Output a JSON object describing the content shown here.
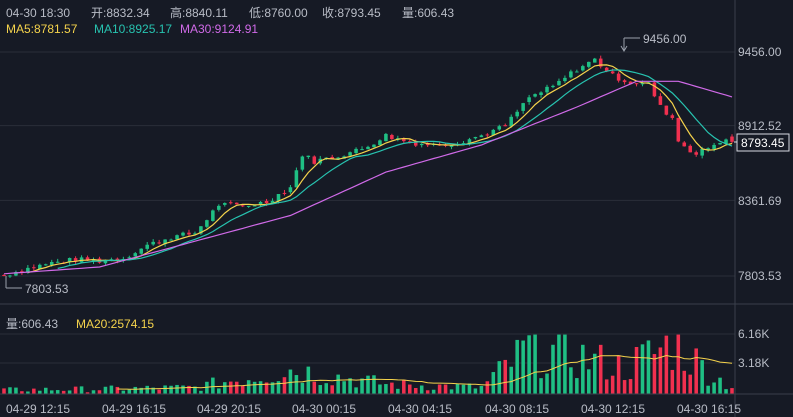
{
  "info": {
    "time": "04-30 18:30",
    "open": "开:8832.34",
    "high": "高:8840.11",
    "low": "低:8760.00",
    "close": "收:8793.45",
    "volume": "量:606.43"
  },
  "ma_legend": {
    "ma5": "MA5:8781.57",
    "ma10": "MA10:8925.17",
    "ma30": "MA30:9124.91"
  },
  "vol_legend": {
    "vol": "量:606.43",
    "ma20": "MA20:2574.15"
  },
  "price_axis": {
    "ticks": [
      "9456.00",
      "8912.52",
      "8361.69",
      "7803.53"
    ],
    "current": "8793.45"
  },
  "vol_axis": {
    "ticks": [
      "6.16K",
      "3.18K"
    ]
  },
  "time_axis": [
    "04-29 12:15",
    "04-29 16:15",
    "04-29 20:15",
    "04-30 00:15",
    "04-30 04:15",
    "04-30 08:15",
    "04-30 12:15",
    "04-30 16:15"
  ],
  "annotations": {
    "max": "9456.00",
    "min": "7803.53"
  },
  "colors": {
    "up": "#1fbf84",
    "down": "#f0304f",
    "ma5": "#f5d34c",
    "ma10": "#27c3b0",
    "ma30": "#d06ae8",
    "bg": "#161a25",
    "grid": "#2a2e39",
    "text": "#b8bcc6"
  },
  "chart_data": {
    "type": "candlestick",
    "interval": "15m",
    "time_range": [
      "04-29 12:00",
      "04-30 18:30"
    ],
    "price_ylim": [
      7803.53,
      9456.0
    ],
    "price_ticks": [
      9456.0,
      8912.52,
      8361.69,
      7803.53
    ],
    "volume_ticks_k": [
      6.16,
      3.18
    ],
    "last": {
      "open": 8832.34,
      "high": 8840.11,
      "low": 8760.0,
      "close": 8793.45,
      "volume": 606.43
    },
    "ma": {
      "MA5": 8781.57,
      "MA10": 8925.17,
      "MA30": 9124.91
    },
    "volume_ma": {
      "MA20": 2574.15
    },
    "max_label": 9456.0,
    "min_label": 7803.53,
    "x_tick_labels": [
      "04-29 12:15",
      "04-29 16:15",
      "04-29 20:15",
      "04-30 00:15",
      "04-30 04:15",
      "04-30 08:15",
      "04-30 12:15",
      "04-30 16:15"
    ],
    "close_path": [
      [
        "04-29 12:00",
        7810
      ],
      [
        "04-29 13:00",
        7860
      ],
      [
        "04-29 14:00",
        7900
      ],
      [
        "04-29 15:00",
        7925
      ],
      [
        "04-29 16:00",
        7915
      ],
      [
        "04-29 17:00",
        7935
      ],
      [
        "04-29 18:00",
        8030
      ],
      [
        "04-29 19:00",
        8090
      ],
      [
        "04-29 20:00",
        8120
      ],
      [
        "04-29 21:00",
        8330
      ],
      [
        "04-29 22:00",
        8320
      ],
      [
        "04-29 23:00",
        8350
      ],
      [
        "04-30 00:00",
        8460
      ],
      [
        "04-30 00:30",
        8700
      ],
      [
        "04-30 01:00",
        8650
      ],
      [
        "04-30 02:00",
        8690
      ],
      [
        "04-30 03:00",
        8740
      ],
      [
        "04-30 04:00",
        8840
      ],
      [
        "04-30 05:00",
        8790
      ],
      [
        "04-30 06:00",
        8770
      ],
      [
        "04-30 07:00",
        8790
      ],
      [
        "04-30 08:00",
        8840
      ],
      [
        "04-30 09:00",
        8910
      ],
      [
        "04-30 10:00",
        9120
      ],
      [
        "04-30 11:00",
        9200
      ],
      [
        "04-30 12:00",
        9330
      ],
      [
        "04-30 12:45",
        9400
      ],
      [
        "04-30 13:30",
        9280
      ],
      [
        "04-30 14:15",
        9230
      ],
      [
        "04-30 15:00",
        9220
      ],
      [
        "04-30 15:30",
        9050
      ],
      [
        "04-30 16:00",
        8970
      ],
      [
        "04-30 16:15",
        8800
      ],
      [
        "04-30 17:00",
        8700
      ],
      [
        "04-30 18:00",
        8800
      ],
      [
        "04-30 18:30",
        8793.45
      ]
    ],
    "ma30_path": [
      [
        "04-29 12:00",
        7820
      ],
      [
        "04-29 16:00",
        7870
      ],
      [
        "04-29 20:00",
        8060
      ],
      [
        "04-30 00:00",
        8250
      ],
      [
        "04-30 04:00",
        8570
      ],
      [
        "04-30 08:00",
        8770
      ],
      [
        "04-30 12:00",
        9050
      ],
      [
        "04-30 14:30",
        9240
      ],
      [
        "04-30 16:15",
        9240
      ],
      [
        "04-30 18:30",
        9124.91
      ]
    ],
    "volume_k_path": [
      [
        "04-29 12:00",
        0.5
      ],
      [
        "04-29 16:00",
        0.6
      ],
      [
        "04-29 20:00",
        0.8
      ],
      [
        "04-30 00:00",
        3.0
      ],
      [
        "04-30 04:00",
        1.2
      ],
      [
        "04-30 08:00",
        0.8
      ],
      [
        "04-30 10:00",
        5.6
      ],
      [
        "04-30 12:00",
        4.5
      ],
      [
        "04-30 14:00",
        3.2
      ],
      [
        "04-30 16:00",
        6.1
      ],
      [
        "04-30 18:30",
        0.61
      ]
    ]
  }
}
